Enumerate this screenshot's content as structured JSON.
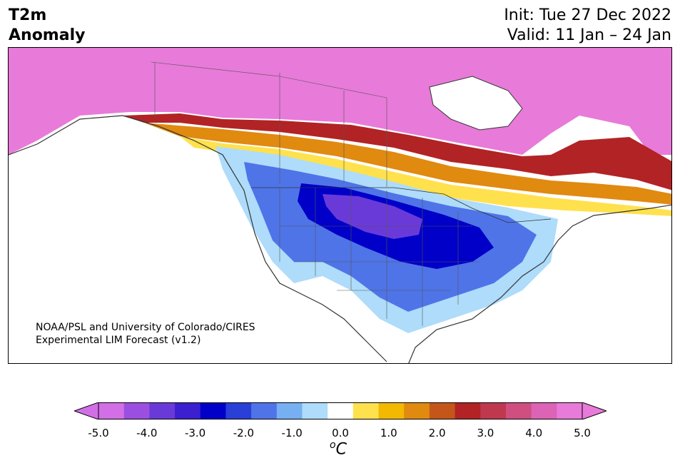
{
  "header": {
    "title_line1": "T2m",
    "title_line2": "Anomaly",
    "init": "Init: Tue 27 Dec 2022",
    "valid": "Valid: 11 Jan – 24 Jan"
  },
  "credit": {
    "line1": "NOAA/PSL and University of Colorado/CIRES",
    "line2": "Experimental LIM Forecast (v1.2)"
  },
  "colorbar": {
    "unit_base": "C",
    "unit_sup": "o",
    "ticks": [
      "-5.0",
      "-4.0",
      "-3.0",
      "-2.0",
      "-1.0",
      "0.0",
      "1.0",
      "2.0",
      "3.0",
      "4.0",
      "5.0"
    ],
    "colors": [
      "#d26fe6",
      "#9b4fe0",
      "#6a3ad8",
      "#3c1fd0",
      "#0000c8",
      "#2a3ed8",
      "#4f74e8",
      "#77b0f2",
      "#aedcfa",
      "#ffffff",
      "#ffe14d",
      "#f3b800",
      "#e08a10",
      "#c4561a",
      "#b22325",
      "#c0384e",
      "#cf4f80",
      "#dc63b6",
      "#e87ad9"
    ],
    "extend_low_color": "#d26fe6",
    "extend_high_color": "#e87ad9"
  },
  "map": {
    "colors": {
      "warm_extreme": "#e87ad9",
      "red": "#b22325",
      "orange": "#e08a10",
      "yellow": "#ffe14d",
      "light_blue": "#aedcfa",
      "blue": "#4f74e8",
      "deep_blue": "#0000c8",
      "purple": "#6a3ad8",
      "land_line": "#333333"
    }
  }
}
